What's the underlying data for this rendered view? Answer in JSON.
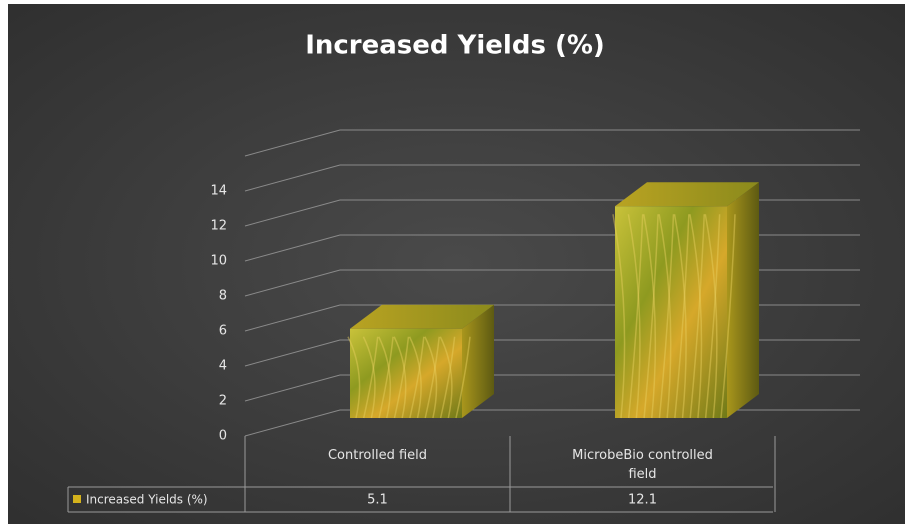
{
  "chart_data": {
    "type": "bar3d",
    "title": "Increased Yields (%)",
    "categories": [
      "Controlled field",
      "MicrobeBio controlled field"
    ],
    "series": [
      {
        "name": "Increased Yields (%)",
        "color": "#d4b21c",
        "values": [
          5.1,
          12.1
        ]
      }
    ],
    "ylim": [
      0,
      16
    ],
    "yticks": [
      0,
      2,
      4,
      6,
      8,
      10,
      12,
      14
    ],
    "grid": true,
    "data_table": true
  }
}
